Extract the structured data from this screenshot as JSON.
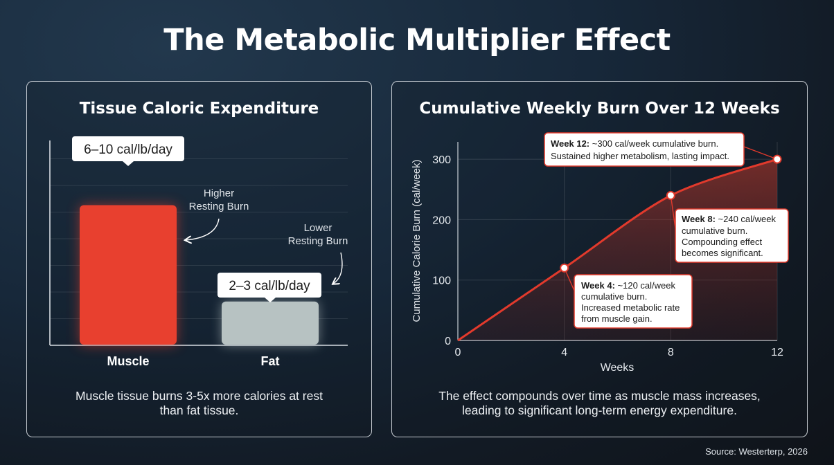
{
  "title": "The Metabolic Multiplier Effect",
  "source": "Source: Westerterp, 2026",
  "colors": {
    "muscle": "#e8402f",
    "fat": "#b7c2c2",
    "line": "#e23a2c",
    "background": "#16263a"
  },
  "left_panel": {
    "title": "Tissue Caloric Expenditure",
    "caption_line1": "Muscle tissue burns 3-5x more calories at rest",
    "caption_line2": "than fat tissue.",
    "annotations": {
      "higher_line1": "Higher",
      "higher_line2": "Resting Burn",
      "lower_line1": "Lower",
      "lower_line2": "Resting Burn"
    }
  },
  "right_panel": {
    "title": "Cumulative Weekly Burn Over 12 Weeks",
    "caption_line1": "The effect compounds over time as muscle mass increases,",
    "caption_line2": "leading to significant long-term energy expenditure.",
    "callouts": {
      "week12": {
        "bold": "Week 12:",
        "text1": " ~300 cal/week cumulative burn.",
        "text2": "Sustained higher metabolism, lasting impact."
      },
      "week8": {
        "bold": "Week 8:",
        "text1": " ~240 cal/week",
        "text2": "cumulative burn.",
        "text3": "Compounding effect",
        "text4": "becomes significant."
      },
      "week4": {
        "bold": "Week 4:",
        "text1": " ~120 cal/week",
        "text2": "cumulative burn.",
        "text3": "Increased metabolic rate",
        "text4": "from muscle gain."
      }
    }
  },
  "chart_data": [
    {
      "type": "bar",
      "title": "Tissue Caloric Expenditure",
      "categories": [
        "Muscle",
        "Fat"
      ],
      "values": [
        8,
        2.5
      ],
      "unit": "cal/lb/day",
      "data_labels": [
        "6–10 cal/lb/day",
        "2–3 cal/lb/day"
      ],
      "ylim": [
        0,
        10
      ],
      "grid": true
    },
    {
      "type": "area",
      "title": "Cumulative Weekly Burn Over 12 Weeks",
      "xlabel": "Weeks",
      "ylabel": "Cumulative Calorie Burn (cal/week)",
      "x": [
        0,
        4,
        8,
        12
      ],
      "y": [
        0,
        120,
        240,
        300
      ],
      "highlighted_points": [
        {
          "x": 4,
          "y": 120
        },
        {
          "x": 8,
          "y": 240
        },
        {
          "x": 12,
          "y": 300
        }
      ],
      "xticks": [
        "0",
        "4",
        "8",
        "12"
      ],
      "yticks": [
        "0",
        "100",
        "200",
        "300"
      ],
      "xlim": [
        0,
        12
      ],
      "ylim": [
        0,
        320
      ],
      "grid": true
    }
  ]
}
